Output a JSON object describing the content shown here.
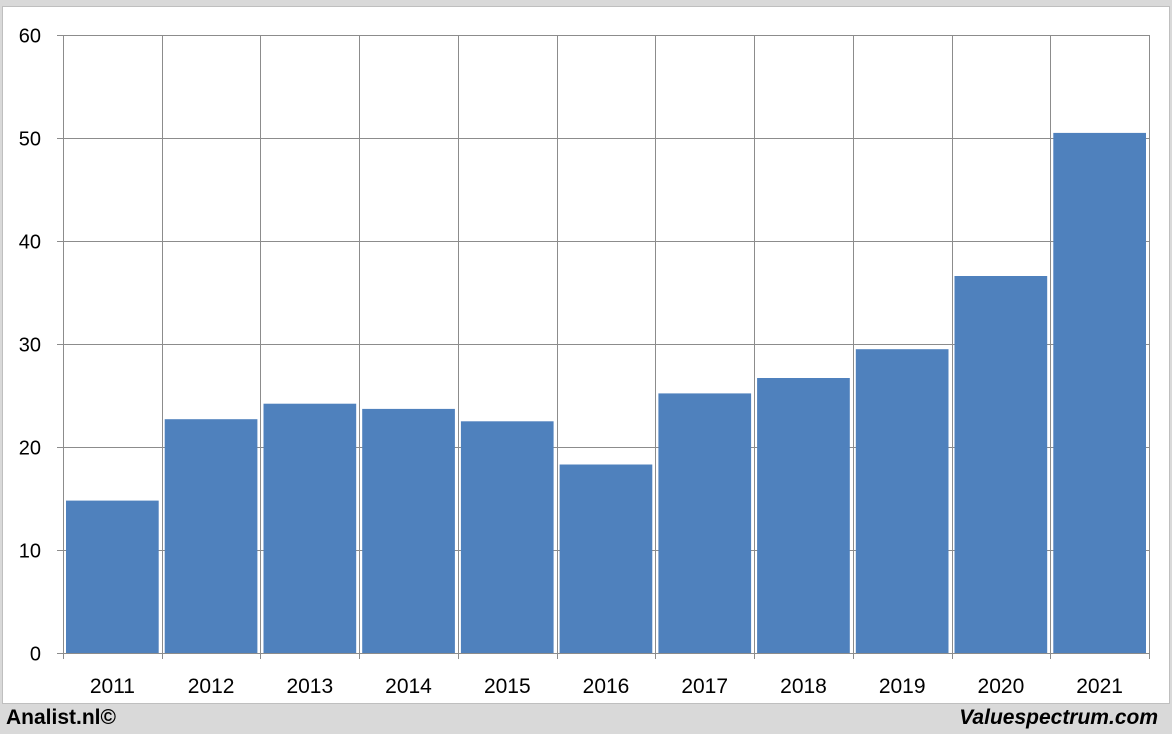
{
  "footer": {
    "left_text": "Analist.nl©",
    "right_text": "Valuespectrum.com"
  },
  "colors": {
    "bar": "#4f81bd",
    "grid": "#8c8c8c",
    "axis": "#8c8c8c",
    "text": "#000000",
    "background": "#ffffff",
    "frame_background": "#d9d9d9"
  },
  "chart_data": {
    "type": "bar",
    "categories": [
      "2011",
      "2012",
      "2013",
      "2014",
      "2015",
      "2016",
      "2017",
      "2018",
      "2019",
      "2020",
      "2021"
    ],
    "values": [
      14.8,
      22.7,
      24.2,
      23.7,
      22.5,
      18.3,
      25.2,
      26.7,
      29.5,
      36.6,
      50.5
    ],
    "ylim": [
      0,
      60
    ],
    "yticks": [
      0,
      10,
      20,
      30,
      40,
      50,
      60
    ],
    "grid": true,
    "legend": "none"
  }
}
